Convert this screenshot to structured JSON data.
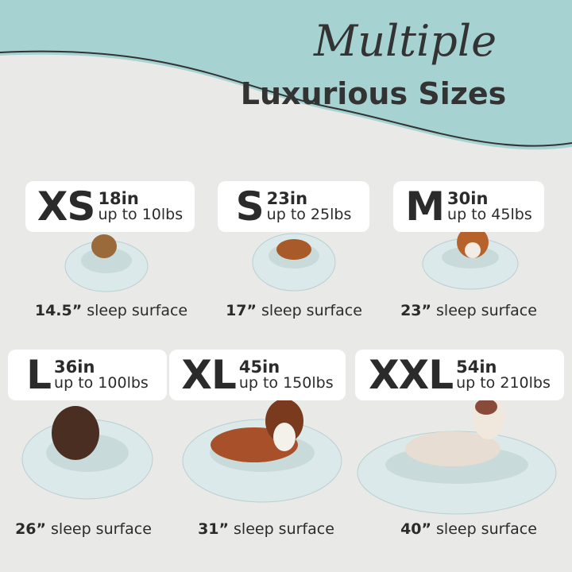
{
  "header": {
    "script_title": "Multiple",
    "title": "Luxurious Sizes"
  },
  "sizes": [
    {
      "code": "XS",
      "diameter": "18in",
      "weight": "up to 10lbs",
      "sleep_size": "14.5”",
      "sleep_label": "sleep surface"
    },
    {
      "code": "S",
      "diameter": "23in",
      "weight": "up to 25lbs",
      "sleep_size": "17”",
      "sleep_label": "sleep surface"
    },
    {
      "code": "M",
      "diameter": "30in",
      "weight": "up to 45lbs",
      "sleep_size": "23”",
      "sleep_label": "sleep surface"
    },
    {
      "code": "L",
      "diameter": "36in",
      "weight": "up to 100lbs",
      "sleep_size": "26”",
      "sleep_label": "sleep surface"
    },
    {
      "code": "XL",
      "diameter": "45in",
      "weight": "up to 150lbs",
      "sleep_size": "31”",
      "sleep_label": "sleep surface"
    },
    {
      "code": "XXL",
      "diameter": "54in",
      "weight": "up to 210lbs",
      "sleep_size": "40”",
      "sleep_label": "sleep surface"
    }
  ]
}
